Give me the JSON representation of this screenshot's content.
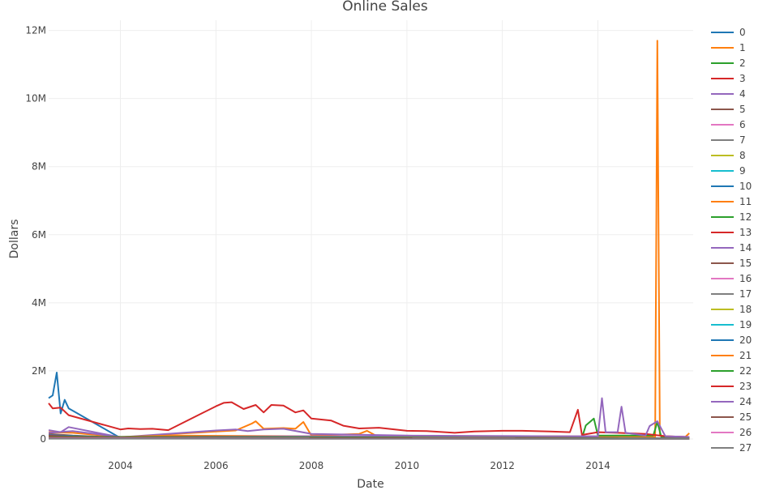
{
  "chart_data": {
    "type": "line",
    "title": "Online Sales",
    "xlabel": "Date",
    "ylabel": "Dollars",
    "xlim": [
      "2002-07-01",
      "2015-12-31"
    ],
    "ylim": [
      0,
      12300000
    ],
    "x_ticks": [
      {
        "value": "2004-01-01",
        "label": "2004"
      },
      {
        "value": "2006-01-01",
        "label": "2006"
      },
      {
        "value": "2008-01-01",
        "label": "2008"
      },
      {
        "value": "2010-01-01",
        "label": "2010"
      },
      {
        "value": "2012-01-01",
        "label": "2012"
      },
      {
        "value": "2014-01-01",
        "label": "2014"
      }
    ],
    "y_ticks": [
      {
        "value": 0,
        "label": "0"
      },
      {
        "value": 2000000,
        "label": "2M"
      },
      {
        "value": 4000000,
        "label": "4M"
      },
      {
        "value": 6000000,
        "label": "6M"
      },
      {
        "value": 8000000,
        "label": "8M"
      },
      {
        "value": 10000000,
        "label": "10M"
      },
      {
        "value": 12000000,
        "label": "12M"
      }
    ],
    "grid": true,
    "legend_position": "right",
    "series": [
      {
        "name": "0",
        "color": "#1f77b4",
        "points": [
          [
            "2002-07-01",
            1200000
          ],
          [
            "2002-08-01",
            1280000
          ],
          [
            "2002-09-01",
            1950000
          ],
          [
            "2002-10-01",
            750000
          ],
          [
            "2002-11-01",
            1150000
          ],
          [
            "2002-12-01",
            900000
          ],
          [
            "2004-01-01",
            30000
          ],
          [
            "2006-01-01",
            20000
          ],
          [
            "2010-01-01",
            15000
          ],
          [
            "2014-01-01",
            10000
          ],
          [
            "2015-12-01",
            10000
          ]
        ]
      },
      {
        "name": "1",
        "color": "#ff7f0e",
        "points": [
          [
            "2002-07-01",
            80000
          ],
          [
            "2004-01-01",
            40000
          ],
          [
            "2005-01-01",
            140000
          ],
          [
            "2006-06-01",
            250000
          ],
          [
            "2006-10-01",
            450000
          ],
          [
            "2006-11-01",
            520000
          ],
          [
            "2007-01-01",
            300000
          ],
          [
            "2007-06-01",
            320000
          ],
          [
            "2007-09-01",
            300000
          ],
          [
            "2007-11-01",
            500000
          ],
          [
            "2008-01-01",
            100000
          ],
          [
            "2009-01-01",
            150000
          ],
          [
            "2009-03-01",
            240000
          ],
          [
            "2009-06-01",
            50000
          ],
          [
            "2010-01-01",
            60000
          ],
          [
            "2013-01-01",
            80000
          ],
          [
            "2015-03-15",
            60000
          ],
          [
            "2015-04-01",
            11700000
          ],
          [
            "2015-04-20",
            100000
          ],
          [
            "2015-06-01",
            80000
          ],
          [
            "2015-11-01",
            60000
          ],
          [
            "2015-12-01",
            170000
          ]
        ]
      },
      {
        "name": "2",
        "color": "#2ca02c",
        "points": [
          [
            "2002-07-01",
            20000
          ],
          [
            "2008-01-01",
            30000
          ],
          [
            "2013-09-01",
            30000
          ],
          [
            "2013-10-01",
            400000
          ],
          [
            "2013-12-01",
            600000
          ],
          [
            "2014-01-01",
            100000
          ],
          [
            "2015-03-01",
            100000
          ],
          [
            "2015-04-01",
            500000
          ],
          [
            "2015-05-01",
            60000
          ],
          [
            "2015-12-01",
            40000
          ]
        ]
      },
      {
        "name": "3",
        "color": "#d62728",
        "points": [
          [
            "2002-07-01",
            1050000
          ],
          [
            "2002-08-01",
            900000
          ],
          [
            "2002-10-01",
            920000
          ],
          [
            "2002-12-01",
            700000
          ],
          [
            "2004-01-01",
            280000
          ],
          [
            "2004-03-01",
            310000
          ],
          [
            "2004-06-01",
            290000
          ],
          [
            "2004-09-01",
            300000
          ],
          [
            "2005-01-01",
            260000
          ],
          [
            "2006-01-01",
            960000
          ],
          [
            "2006-03-01",
            1060000
          ],
          [
            "2006-05-01",
            1080000
          ],
          [
            "2006-08-01",
            880000
          ],
          [
            "2006-11-01",
            1000000
          ],
          [
            "2007-01-01",
            780000
          ],
          [
            "2007-03-01",
            1000000
          ],
          [
            "2007-06-01",
            980000
          ],
          [
            "2007-09-01",
            780000
          ],
          [
            "2007-11-01",
            840000
          ],
          [
            "2008-01-01",
            600000
          ],
          [
            "2008-06-01",
            540000
          ],
          [
            "2008-09-01",
            390000
          ],
          [
            "2009-01-01",
            310000
          ],
          [
            "2009-06-01",
            330000
          ],
          [
            "2010-01-01",
            240000
          ],
          [
            "2010-06-01",
            230000
          ],
          [
            "2011-01-01",
            180000
          ],
          [
            "2011-06-01",
            220000
          ],
          [
            "2012-01-01",
            240000
          ],
          [
            "2012-06-01",
            240000
          ],
          [
            "2013-01-01",
            220000
          ],
          [
            "2013-06-01",
            200000
          ],
          [
            "2013-08-01",
            860000
          ],
          [
            "2013-09-01",
            120000
          ],
          [
            "2014-01-01",
            200000
          ],
          [
            "2014-06-01",
            180000
          ],
          [
            "2015-01-01",
            150000
          ],
          [
            "2015-06-01",
            80000
          ],
          [
            "2015-12-01",
            60000
          ]
        ]
      },
      {
        "name": "4",
        "color": "#9467bd",
        "points": [
          [
            "2002-07-01",
            260000
          ],
          [
            "2002-10-01",
            200000
          ],
          [
            "2002-12-01",
            350000
          ],
          [
            "2004-01-01",
            50000
          ],
          [
            "2006-01-01",
            250000
          ],
          [
            "2006-06-01",
            280000
          ],
          [
            "2006-09-01",
            230000
          ],
          [
            "2007-01-01",
            280000
          ],
          [
            "2007-06-01",
            300000
          ],
          [
            "2008-01-01",
            150000
          ],
          [
            "2010-01-01",
            100000
          ],
          [
            "2013-01-01",
            80000
          ],
          [
            "2014-01-01",
            80000
          ],
          [
            "2014-02-01",
            1200000
          ],
          [
            "2014-03-01",
            200000
          ],
          [
            "2014-06-01",
            200000
          ],
          [
            "2014-07-01",
            950000
          ],
          [
            "2014-08-01",
            180000
          ],
          [
            "2015-01-01",
            100000
          ],
          [
            "2015-02-01",
            380000
          ],
          [
            "2015-04-01",
            520000
          ],
          [
            "2015-06-01",
            80000
          ],
          [
            "2015-12-01",
            60000
          ]
        ]
      },
      {
        "name": "5",
        "color": "#8c564b",
        "points": [
          [
            "2002-07-01",
            150000
          ],
          [
            "2003-01-01",
            100000
          ],
          [
            "2004-01-01",
            40000
          ],
          [
            "2008-01-01",
            30000
          ],
          [
            "2015-12-01",
            20000
          ]
        ]
      },
      {
        "name": "6",
        "color": "#e377c2",
        "points": [
          [
            "2002-07-01",
            100000
          ],
          [
            "2003-01-01",
            80000
          ],
          [
            "2004-01-01",
            20000
          ],
          [
            "2015-12-01",
            10000
          ]
        ]
      },
      {
        "name": "7",
        "color": "#7f7f7f",
        "points": [
          [
            "2002-07-01",
            120000
          ],
          [
            "2004-01-01",
            30000
          ],
          [
            "2008-01-01",
            40000
          ],
          [
            "2015-12-01",
            20000
          ]
        ]
      },
      {
        "name": "8",
        "color": "#bcbd22",
        "points": [
          [
            "2002-07-01",
            60000
          ],
          [
            "2004-01-01",
            20000
          ],
          [
            "2015-12-01",
            10000
          ]
        ]
      },
      {
        "name": "9",
        "color": "#17becf",
        "points": [
          [
            "2002-07-01",
            40000
          ],
          [
            "2015-12-01",
            10000
          ]
        ]
      },
      {
        "name": "10",
        "color": "#1f77b4",
        "points": [
          [
            "2002-07-01",
            110000
          ],
          [
            "2004-01-01",
            40000
          ],
          [
            "2010-01-01",
            30000
          ],
          [
            "2015-12-01",
            15000
          ]
        ]
      },
      {
        "name": "11",
        "color": "#ff7f0e",
        "points": [
          [
            "2002-07-01",
            200000
          ],
          [
            "2003-01-01",
            180000
          ],
          [
            "2004-01-01",
            60000
          ],
          [
            "2005-01-01",
            100000
          ],
          [
            "2008-01-01",
            80000
          ],
          [
            "2015-12-01",
            20000
          ]
        ]
      },
      {
        "name": "12",
        "color": "#2ca02c",
        "points": [
          [
            "2002-07-01",
            50000
          ],
          [
            "2015-12-01",
            20000
          ]
        ]
      },
      {
        "name": "13",
        "color": "#d62728",
        "points": [
          [
            "2002-07-01",
            90000
          ],
          [
            "2004-01-01",
            30000
          ],
          [
            "2015-12-01",
            10000
          ]
        ]
      },
      {
        "name": "14",
        "color": "#9467bd",
        "points": [
          [
            "2002-07-01",
            180000
          ],
          [
            "2003-01-01",
            230000
          ],
          [
            "2004-01-01",
            60000
          ],
          [
            "2008-01-01",
            80000
          ],
          [
            "2015-12-01",
            20000
          ]
        ]
      },
      {
        "name": "15",
        "color": "#8c564b",
        "points": [
          [
            "2002-07-01",
            70000
          ],
          [
            "2015-12-01",
            15000
          ]
        ]
      },
      {
        "name": "16",
        "color": "#e377c2",
        "points": [
          [
            "2002-07-01",
            30000
          ],
          [
            "2015-12-01",
            10000
          ]
        ]
      },
      {
        "name": "17",
        "color": "#7f7f7f",
        "points": [
          [
            "2002-07-01",
            60000
          ],
          [
            "2015-12-01",
            10000
          ]
        ]
      },
      {
        "name": "18",
        "color": "#bcbd22",
        "points": [
          [
            "2002-07-01",
            20000
          ],
          [
            "2015-12-01",
            5000
          ]
        ]
      },
      {
        "name": "19",
        "color": "#17becf",
        "points": [
          [
            "2002-07-01",
            25000
          ],
          [
            "2015-12-01",
            8000
          ]
        ]
      },
      {
        "name": "20",
        "color": "#1f77b4",
        "points": [
          [
            "2002-07-01",
            50000
          ],
          [
            "2015-12-01",
            10000
          ]
        ]
      },
      {
        "name": "21",
        "color": "#ff7f0e",
        "points": [
          [
            "2002-07-01",
            30000
          ],
          [
            "2015-12-01",
            10000
          ]
        ]
      },
      {
        "name": "22",
        "color": "#2ca02c",
        "points": [
          [
            "2002-07-01",
            60000
          ],
          [
            "2008-01-01",
            50000
          ],
          [
            "2015-12-01",
            20000
          ]
        ]
      },
      {
        "name": "23",
        "color": "#d62728",
        "points": [
          [
            "2002-07-01",
            40000
          ],
          [
            "2015-12-01",
            10000
          ]
        ]
      },
      {
        "name": "24",
        "color": "#9467bd",
        "points": [
          [
            "2002-07-01",
            30000
          ],
          [
            "2015-12-01",
            10000
          ]
        ]
      },
      {
        "name": "25",
        "color": "#8c564b",
        "points": [
          [
            "2002-07-01",
            20000
          ],
          [
            "2015-12-01",
            5000
          ]
        ]
      },
      {
        "name": "26",
        "color": "#e377c2",
        "points": [
          [
            "2002-07-01",
            15000
          ],
          [
            "2015-12-01",
            5000
          ]
        ]
      },
      {
        "name": "27",
        "color": "#7f7f7f",
        "points": [
          [
            "2002-07-01",
            10000
          ],
          [
            "2015-12-01",
            3000
          ]
        ]
      }
    ]
  }
}
